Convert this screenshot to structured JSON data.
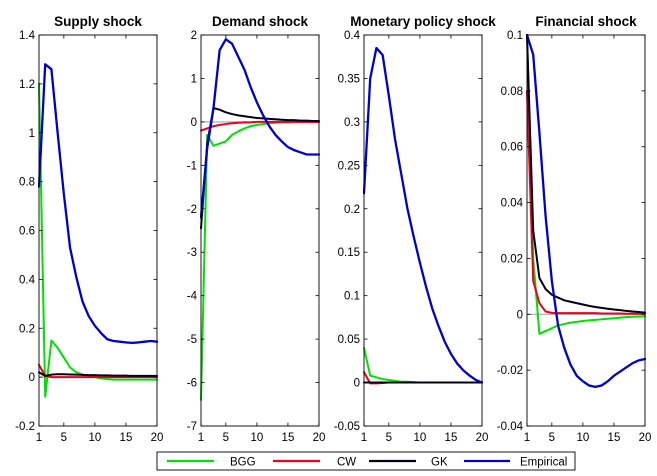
{
  "chart_data": [
    {
      "type": "line",
      "title": "Supply shock",
      "xlim": [
        1,
        20
      ],
      "ylim": [
        -0.2,
        1.4
      ],
      "xticks": [
        "1",
        "5",
        "10",
        "15",
        "20"
      ],
      "yticks": [
        "-0.2",
        "0",
        "0.2",
        "0.4",
        "0.6",
        "0.8",
        "1",
        "1.2",
        "1.4"
      ],
      "x": [
        1,
        2,
        3,
        4,
        5,
        6,
        7,
        8,
        9,
        10,
        11,
        12,
        13,
        14,
        15,
        16,
        17,
        18,
        19,
        20
      ],
      "series": [
        {
          "name": "BGG",
          "values": [
            1.2,
            -0.08,
            0.15,
            0.12,
            0.08,
            0.04,
            0.02,
            0.01,
            0.005,
            0,
            -0.005,
            -0.008,
            -0.01,
            -0.01,
            -0.01,
            -0.01,
            -0.01,
            -0.01,
            -0.01,
            -0.01
          ]
        },
        {
          "name": "CW",
          "values": [
            0.05,
            0.005,
            0,
            0,
            0,
            0,
            0,
            0,
            0,
            0,
            0,
            0,
            0,
            0,
            0,
            0,
            0,
            0,
            0,
            0
          ]
        },
        {
          "name": "GK",
          "values": [
            0.02,
            0.005,
            0.01,
            0.012,
            0.012,
            0.011,
            0.01,
            0.009,
            0.008,
            0.008,
            0.007,
            0.007,
            0.006,
            0.006,
            0.006,
            0.005,
            0.005,
            0.005,
            0.005,
            0.005
          ]
        },
        {
          "name": "Empirical",
          "values": [
            0.78,
            1.28,
            1.26,
            1.0,
            0.75,
            0.53,
            0.41,
            0.31,
            0.25,
            0.21,
            0.18,
            0.155,
            0.148,
            0.145,
            0.142,
            0.14,
            0.142,
            0.145,
            0.148,
            0.145
          ]
        }
      ]
    },
    {
      "type": "line",
      "title": "Demand shock",
      "xlim": [
        1,
        20
      ],
      "ylim": [
        -7,
        2
      ],
      "xticks": [
        "1",
        "5",
        "10",
        "15",
        "20"
      ],
      "yticks": [
        "-7",
        "-6",
        "-5",
        "-4",
        "-3",
        "-2",
        "-1",
        "0",
        "1",
        "2"
      ],
      "x": [
        1,
        2,
        3,
        4,
        5,
        6,
        7,
        8,
        9,
        10,
        11,
        12,
        13,
        14,
        15,
        16,
        17,
        18,
        19,
        20
      ],
      "series": [
        {
          "name": "BGG",
          "values": [
            -6.4,
            -0.3,
            -0.55,
            -0.5,
            -0.45,
            -0.3,
            -0.22,
            -0.15,
            -0.1,
            -0.07,
            -0.05,
            -0.03,
            -0.02,
            -0.01,
            -0.01,
            0,
            0,
            0,
            0,
            0
          ]
        },
        {
          "name": "CW",
          "values": [
            -0.2,
            -0.15,
            -0.1,
            -0.07,
            -0.05,
            -0.03,
            -0.02,
            -0.01,
            -0.01,
            0,
            0,
            0,
            0,
            0,
            0,
            0,
            0,
            0,
            0,
            0
          ]
        },
        {
          "name": "GK",
          "values": [
            -2.45,
            -0.5,
            0.32,
            0.28,
            0.22,
            0.18,
            0.15,
            0.13,
            0.11,
            0.09,
            0.08,
            0.07,
            0.06,
            0.05,
            0.04,
            0.04,
            0.03,
            0.03,
            0.02,
            0.02
          ]
        },
        {
          "name": "Empirical",
          "values": [
            -2.2,
            -0.6,
            0.3,
            1.65,
            1.9,
            1.8,
            1.5,
            1.2,
            0.8,
            0.45,
            0.15,
            -0.1,
            -0.3,
            -0.45,
            -0.58,
            -0.65,
            -0.7,
            -0.75,
            -0.75,
            -0.75
          ]
        }
      ]
    },
    {
      "type": "line",
      "title": "Monetary policy shock",
      "xlim": [
        1,
        20
      ],
      "ylim": [
        -0.05,
        0.4
      ],
      "xticks": [
        "1",
        "5",
        "10",
        "15",
        "20"
      ],
      "yticks": [
        "-0.05",
        "0",
        "0.05",
        "0.1",
        "0.15",
        "0.2",
        "0.25",
        "0.3",
        "0.35",
        "0.4"
      ],
      "x": [
        1,
        2,
        3,
        4,
        5,
        6,
        7,
        8,
        9,
        10,
        11,
        12,
        13,
        14,
        15,
        16,
        17,
        18,
        19,
        20
      ],
      "series": [
        {
          "name": "BGG",
          "values": [
            0.04,
            0.008,
            0.006,
            0.004,
            0.003,
            0.002,
            0.001,
            0.001,
            0.0005,
            0,
            0,
            0,
            0,
            0,
            0,
            0,
            0,
            0,
            0,
            0
          ]
        },
        {
          "name": "CW",
          "values": [
            0.012,
            -0.001,
            -0.001,
            -0.0005,
            0,
            0,
            0,
            0,
            0,
            0,
            0,
            0,
            0,
            0,
            0,
            0,
            0,
            0,
            0,
            0
          ]
        },
        {
          "name": "GK",
          "values": [
            0,
            0,
            0,
            0,
            0,
            0,
            0,
            0,
            0,
            0,
            0,
            0,
            0,
            0,
            0,
            0,
            0,
            0,
            0,
            0
          ]
        },
        {
          "name": "Empirical",
          "values": [
            0.218,
            0.35,
            0.385,
            0.377,
            0.33,
            0.28,
            0.24,
            0.2,
            0.168,
            0.138,
            0.11,
            0.085,
            0.065,
            0.047,
            0.033,
            0.022,
            0.014,
            0.008,
            0.003,
            0
          ]
        }
      ]
    },
    {
      "type": "line",
      "title": "Financial shock",
      "xlim": [
        1,
        20
      ],
      "ylim": [
        -0.04,
        0.1
      ],
      "xticks": [
        "1",
        "5",
        "10",
        "15",
        "20"
      ],
      "yticks": [
        "-0.04",
        "-0.02",
        "0",
        "0.02",
        "0.04",
        "0.06",
        "0.08",
        "0.1"
      ],
      "x": [
        1,
        2,
        3,
        4,
        5,
        6,
        7,
        8,
        9,
        10,
        11,
        12,
        13,
        14,
        15,
        16,
        17,
        18,
        19,
        20
      ],
      "series": [
        {
          "name": "BGG",
          "values": [
            0.1,
            0.02,
            -0.007,
            -0.006,
            -0.005,
            -0.004,
            -0.0035,
            -0.003,
            -0.0027,
            -0.0024,
            -0.0022,
            -0.002,
            -0.0018,
            -0.0016,
            -0.0014,
            -0.0012,
            -0.001,
            -0.0009,
            -0.0008,
            -0.0007
          ]
        },
        {
          "name": "CW",
          "values": [
            0.08,
            0.012,
            0.004,
            0.001,
            0.0005,
            0.0004,
            0.0004,
            0.0004,
            0.0004,
            0.0004,
            0.0004,
            0.0004,
            0.0003,
            0.0003,
            0.0003,
            0.0003,
            0.0002,
            0.0002,
            0.0002,
            0.0002
          ]
        },
        {
          "name": "GK",
          "values": [
            0.1,
            0.03,
            0.013,
            0.009,
            0.007,
            0.006,
            0.005,
            0.0045,
            0.004,
            0.0035,
            0.003,
            0.0026,
            0.0023,
            0.002,
            0.0017,
            0.0015,
            0.0012,
            0.001,
            0.0008,
            0.0006
          ]
        },
        {
          "name": "Empirical",
          "values": [
            0.1,
            0.093,
            0.065,
            0.035,
            0.012,
            -0.004,
            -0.012,
            -0.018,
            -0.022,
            -0.024,
            -0.0255,
            -0.026,
            -0.0255,
            -0.024,
            -0.022,
            -0.0205,
            -0.019,
            -0.0175,
            -0.0165,
            -0.016
          ]
        }
      ]
    }
  ],
  "legend": {
    "placement": "bottom-center",
    "entries": [
      {
        "label": "BGG",
        "color": "#00e000"
      },
      {
        "label": "CW",
        "color": "#e8001c"
      },
      {
        "label": "GK",
        "color": "#000018"
      },
      {
        "label": "Empirical",
        "color": "#0000cc"
      }
    ]
  },
  "zero_line_color": "#a8a8a8"
}
